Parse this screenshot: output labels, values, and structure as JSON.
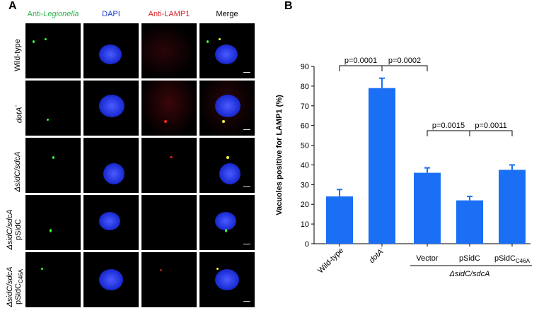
{
  "panel_a": {
    "letter": "A",
    "columns": [
      {
        "label": "Anti-Legionella",
        "prefix": "Anti-",
        "italic": "Legionella",
        "color": "#2db34a"
      },
      {
        "label": "DAPI",
        "color": "#1f3fd1"
      },
      {
        "label": "Anti-LAMP1",
        "color": "#d6252a"
      },
      {
        "label": "Merge",
        "color": "#000000"
      }
    ],
    "rows": [
      {
        "line1": "Wild-type",
        "line2": "",
        "sub": ""
      },
      {
        "line1": "dotA",
        "sup": "-",
        "line2": "",
        "sub": ""
      },
      {
        "line1": "ΔsidC/sdcA",
        "line2": "",
        "sub": ""
      },
      {
        "line1": "ΔsidC/sdcA",
        "line2": "pSidC",
        "sub": ""
      },
      {
        "line1": "ΔsidC/sdcA",
        "line2": "pSidC",
        "sub": "C46A"
      }
    ]
  },
  "panel_b": {
    "letter": "B"
  },
  "chart_data": {
    "type": "bar",
    "ylabel": "Vacuoles positive for LAMP1 (%)",
    "ylim": [
      0,
      90
    ],
    "yticks": [
      0,
      10,
      20,
      30,
      40,
      50,
      60,
      70,
      80,
      90
    ],
    "bar_color": "#1a6ff5",
    "categories": [
      {
        "label": "Wild-type",
        "sub": "",
        "italic": false
      },
      {
        "label": "dotA",
        "sup": "-",
        "italic": true
      },
      {
        "label": "Vector",
        "sub": "",
        "italic": false
      },
      {
        "label": "pSidC",
        "sub": "",
        "italic": false
      },
      {
        "label": "pSidC",
        "sub": "C46A",
        "italic": false
      }
    ],
    "values": [
      24,
      79,
      36,
      22,
      37.5
    ],
    "errors": [
      3.5,
      5,
      2.5,
      2,
      2.5
    ],
    "group_label": "ΔsidC/sdcA",
    "comparisons": [
      {
        "from": 0,
        "to": 1,
        "label": "p=0.0001"
      },
      {
        "from": 1,
        "to": 2,
        "label": "p=0.0002"
      },
      {
        "from": 2,
        "to": 3,
        "label": "p=0.0015"
      },
      {
        "from": 3,
        "to": 4,
        "label": "p=0.0011"
      }
    ]
  }
}
